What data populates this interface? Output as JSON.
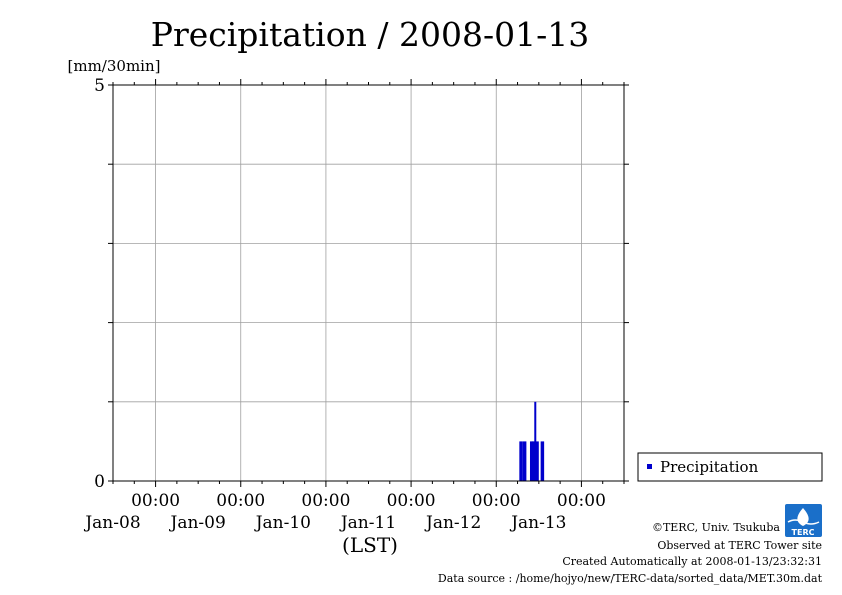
{
  "chart_data": {
    "type": "bar",
    "title": "Precipitation / 2008-01-13",
    "ylabel": "[mm/30min]",
    "xlabel": "(LST)",
    "ylim": [
      0,
      5
    ],
    "y_ticks": [
      "5",
      "0"
    ],
    "x_ticks": [
      {
        "time": "00:00",
        "date": "Jan-08"
      },
      {
        "time": "00:00",
        "date": "Jan-09"
      },
      {
        "time": "00:00",
        "date": "Jan-10"
      },
      {
        "time": "00:00",
        "date": "Jan-11"
      },
      {
        "time": "00:00",
        "date": "Jan-12"
      },
      {
        "time": "00:00",
        "date": "Jan-13"
      }
    ],
    "x_range": [
      "2008-01-07 12:00",
      "2008-01-13 12:00"
    ],
    "grid": true,
    "legend_position": "right",
    "series": [
      {
        "name": "Precipitation",
        "color": "#0000cc",
        "bars": [
          {
            "t": "2008-01-12 07:00",
            "value": 0.5
          },
          {
            "t": "2008-01-12 08:00",
            "value": 0.5
          },
          {
            "t": "2008-01-12 10:00",
            "value": 0.5
          },
          {
            "t": "2008-01-12 10:30",
            "value": 0.5
          },
          {
            "t": "2008-01-12 11:00",
            "value": 1.0
          },
          {
            "t": "2008-01-12 11:30",
            "value": 0.5
          },
          {
            "t": "2008-01-12 13:00",
            "value": 0.5
          }
        ]
      }
    ]
  },
  "footer": {
    "copyright": "©TERC, Univ. Tsukuba",
    "observed": "Observed at TERC Tower site",
    "created": "Created Automatically at 2008-01-13/23:32:31",
    "source": "Data source : /home/hojyo/new/TERC-data/sorted_data/MET.30m.dat"
  },
  "logo": {
    "text": "TERC",
    "color": "#1a6fc9"
  }
}
